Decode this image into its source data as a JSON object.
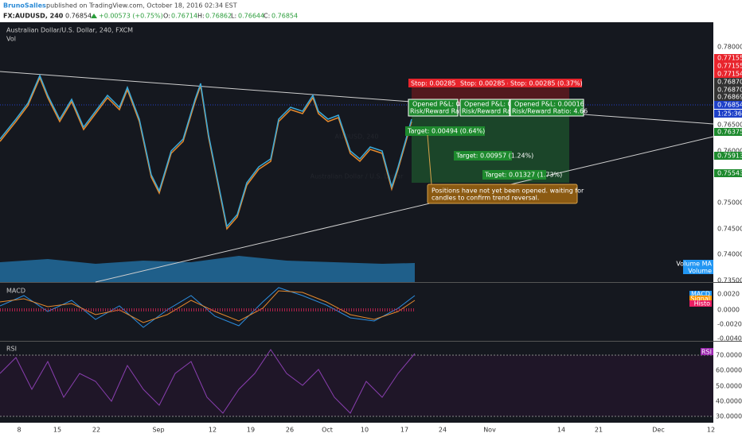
{
  "header": {
    "author": "BrunoSalles",
    "published": "published on TradingView.com, October 18, 2016 02:34 EST"
  },
  "symbol_bar": {
    "symbol": "FX:AUDUSD, 240",
    "price": "0.76854",
    "change": "+0.00573 (+0.75%)",
    "open_label": "O:",
    "open": "0.76714",
    "high_label": "H:",
    "high": "0.76862",
    "low_label": "L:",
    "low": "0.76644",
    "close_label": "C:",
    "close": "0.76854"
  },
  "main_pane": {
    "title": "Australian Dollar/U.S. Dollar, 240, FXCM",
    "volume_label": "Vol",
    "watermark": "AUDUSD, 240",
    "watermark_subtitle": "Australian Dollar / U.S. Dollar",
    "legend": [
      "Volume MA",
      "Volume"
    ],
    "stops": [
      "Stop: 0.00285 (",
      "Stop: 0.00285 (",
      "Stop: 0.00285 (0.37%)"
    ],
    "positions": [
      {
        "pnl": "Opened P&L: 0",
        "ratio": "Risk/Reward Rati"
      },
      {
        "pnl": "Opened P&L: 0",
        "ratio": "Risk/Reward Rati"
      },
      {
        "pnl": "Opened P&L: 0.00016",
        "ratio": "Risk/Reward Ratio: 4.66"
      }
    ],
    "targets": [
      "Target: 0.00494 (0.64%)",
      "Target: 0.00957 (1.24%)",
      "Target: 0.01327 (1.73%)"
    ],
    "note": [
      "Positions have not yet been opened. waiting for",
      "candles to confirm trend reversal."
    ]
  },
  "price_axis": {
    "labels": [
      "0.78000",
      "0.77155",
      "0.77155",
      "0.77154",
      "0.76870",
      "0.76870",
      "0.76869",
      "0.76854",
      "1:25:36",
      "0.76500",
      "0.76375",
      "0.76000",
      "0.75913",
      "0.75543",
      "0.75000",
      "0.74500",
      "0.74000",
      "0.73500"
    ]
  },
  "macd_pane": {
    "title": "MACD",
    "axis": [
      "0.0020",
      "0.0000",
      "-0.0020",
      "-0.0040"
    ],
    "legend": [
      "MACD",
      "Signal",
      "Histo"
    ]
  },
  "rsi_pane": {
    "title": "RSI",
    "axis": [
      "70.0000",
      "60.0000",
      "50.0000",
      "40.0000",
      "30.0000"
    ],
    "legend": [
      "RSI"
    ]
  },
  "time_axis": {
    "labels": [
      "8",
      "15",
      "22",
      "Sep",
      "12",
      "19",
      "26",
      "Oct",
      "10",
      "17",
      "24",
      "Nov",
      "14",
      "21",
      "Dec",
      "12"
    ]
  }
}
